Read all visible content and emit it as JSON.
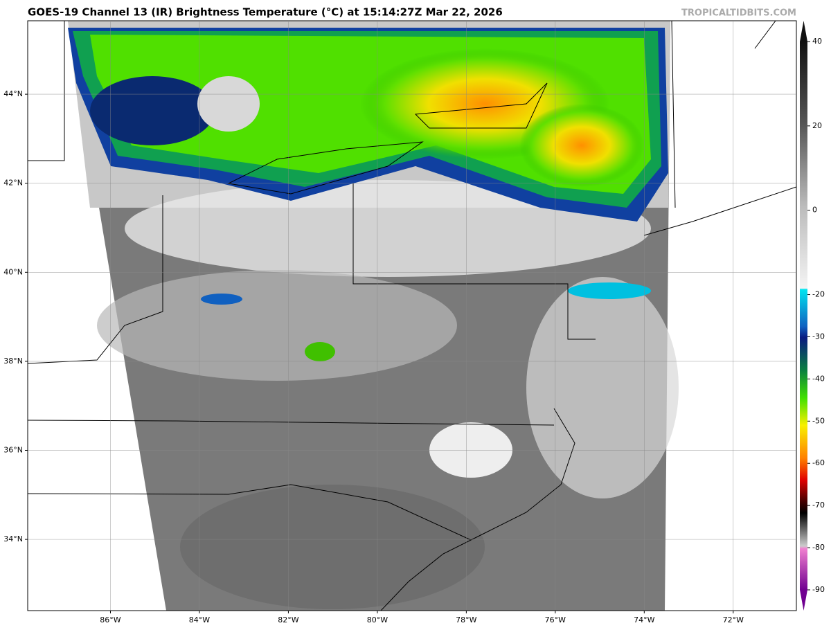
{
  "map": {
    "title": "GOES-19 Channel 13 (IR) Brightness Temperature (°C) at 15:14:27Z Mar 22, 2026",
    "credit": "TROPICALTIDBITS.COM",
    "xlim": [
      -87.86,
      -70.58
    ],
    "ylim": [
      32.4,
      45.65
    ],
    "xticks": [
      {
        "value": -86,
        "label": "86°W"
      },
      {
        "value": -84,
        "label": "84°W"
      },
      {
        "value": -82,
        "label": "82°W"
      },
      {
        "value": -80,
        "label": "80°W"
      },
      {
        "value": -78,
        "label": "78°W"
      },
      {
        "value": -76,
        "label": "76°W"
      },
      {
        "value": -74,
        "label": "74°W"
      },
      {
        "value": -72,
        "label": "72°W"
      }
    ],
    "yticks": [
      {
        "value": 34,
        "label": "34°N"
      },
      {
        "value": 36,
        "label": "36°N"
      },
      {
        "value": 38,
        "label": "38°N"
      },
      {
        "value": 40,
        "label": "40°N"
      },
      {
        "value": 42,
        "label": "42°N"
      },
      {
        "value": 44,
        "label": "44°N"
      }
    ],
    "grid": true,
    "colorbar": {
      "lim": [
        -90,
        40
      ],
      "ticks": [
        40,
        20,
        0,
        -20,
        -30,
        -40,
        -50,
        -60,
        -70,
        -80,
        -90
      ]
    }
  }
}
